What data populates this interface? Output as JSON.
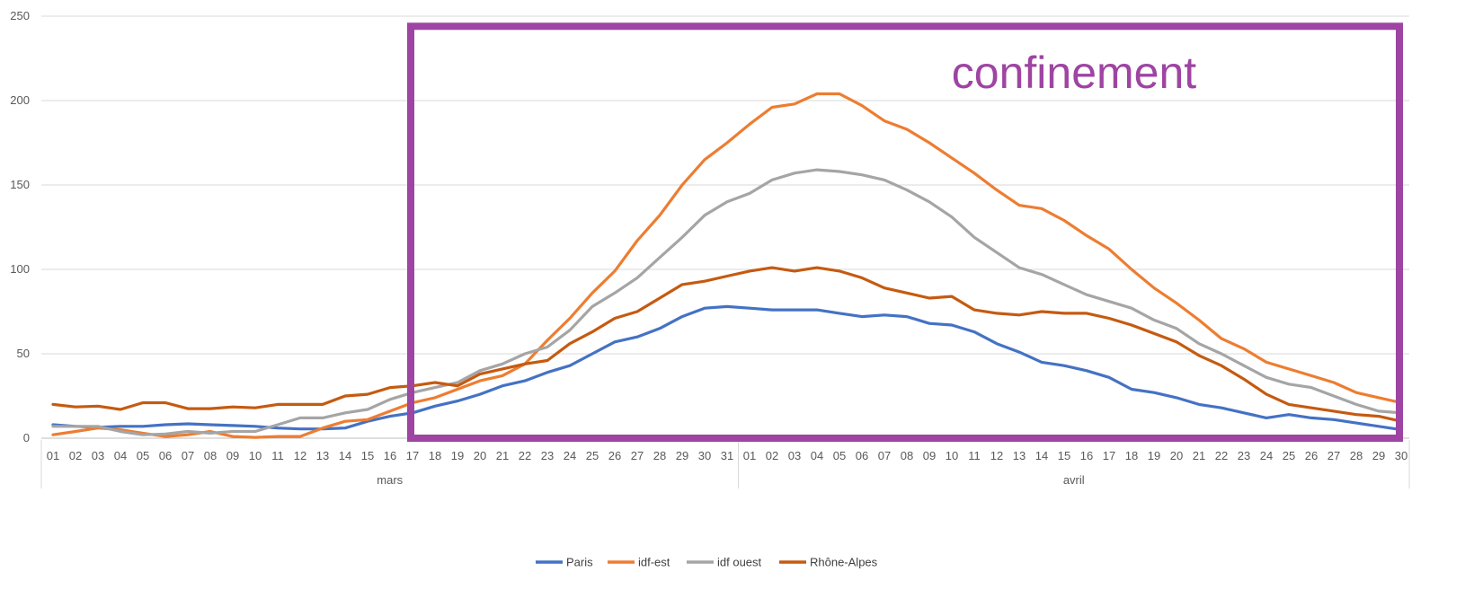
{
  "chart_data": {
    "type": "line",
    "title": "",
    "xlabel": "",
    "ylabel": "",
    "ylim": [
      0,
      250
    ],
    "yticks": [
      0,
      50,
      100,
      150,
      200,
      250
    ],
    "grid": "horizontal",
    "legend_position": "bottom",
    "months": [
      {
        "name": "mars",
        "start": 0,
        "end": 30
      },
      {
        "name": "avril",
        "start": 31,
        "end": 60
      }
    ],
    "x": [
      "01",
      "02",
      "03",
      "04",
      "05",
      "06",
      "07",
      "08",
      "09",
      "10",
      "11",
      "12",
      "13",
      "14",
      "15",
      "16",
      "17",
      "18",
      "19",
      "20",
      "21",
      "22",
      "23",
      "24",
      "25",
      "26",
      "27",
      "28",
      "29",
      "30",
      "31",
      "01",
      "02",
      "03",
      "04",
      "05",
      "06",
      "07",
      "08",
      "09",
      "10",
      "11",
      "12",
      "13",
      "14",
      "15",
      "16",
      "17",
      "18",
      "19",
      "20",
      "21",
      "22",
      "23",
      "24",
      "25",
      "26",
      "27",
      "28",
      "29",
      "30"
    ],
    "series": [
      {
        "name": "Paris",
        "color": "#4472C4",
        "values": [
          8,
          7,
          6.5,
          7,
          7,
          8,
          8.5,
          8,
          7.5,
          7,
          6,
          5.5,
          5.5,
          6,
          10,
          13,
          15,
          19,
          22,
          26,
          31,
          34,
          39,
          43,
          50,
          57,
          60,
          65,
          72,
          77,
          78,
          77,
          76,
          76,
          76,
          74,
          72,
          73,
          72,
          68,
          67,
          63,
          56,
          51,
          45,
          43,
          40,
          36,
          29,
          27,
          24,
          20,
          18,
          15,
          12,
          14,
          12,
          11,
          9,
          7,
          5
        ]
      },
      {
        "name": "idf-est",
        "color": "#ED7D31",
        "values": [
          2,
          4,
          6,
          5,
          3,
          1,
          2,
          4,
          1,
          0.5,
          1,
          1,
          6,
          10,
          11,
          16,
          21,
          24,
          29,
          34,
          37,
          44,
          58,
          71,
          86,
          99,
          117,
          132,
          150,
          165,
          175,
          186,
          196,
          198,
          204,
          204,
          197,
          188,
          183,
          175,
          166,
          157,
          147,
          138,
          136,
          129,
          120,
          112,
          100,
          89,
          80,
          70,
          59,
          53,
          45,
          41,
          37,
          33,
          27,
          24,
          21
        ]
      },
      {
        "name": "idf ouest",
        "color": "#A5A5A5",
        "values": [
          7,
          7,
          7,
          4,
          2,
          2.5,
          4,
          3,
          4,
          4,
          8,
          12,
          12,
          15,
          17,
          23,
          27,
          30,
          33,
          40,
          44,
          50,
          54,
          64,
          78,
          86,
          95,
          107,
          119,
          132,
          140,
          145,
          153,
          157,
          159,
          158,
          156,
          153,
          147,
          140,
          131,
          119,
          110,
          101,
          97,
          91,
          85,
          81,
          77,
          70,
          65,
          56,
          50,
          43,
          36,
          32,
          30,
          25,
          20,
          16,
          15
        ]
      },
      {
        "name": "Rhône-Alpes",
        "color": "#C55A11",
        "values": [
          20,
          18.5,
          19,
          17,
          21,
          21,
          17.5,
          17.5,
          18.5,
          18,
          20,
          20,
          20,
          25,
          26,
          30,
          31,
          33,
          31,
          38,
          41,
          44,
          46,
          56,
          63,
          71,
          75,
          83,
          91,
          93,
          96,
          99,
          101,
          99,
          101,
          99,
          95,
          89,
          86,
          83,
          84,
          76,
          74,
          73,
          75,
          74,
          74,
          71,
          67,
          62,
          57,
          49,
          43,
          35,
          26,
          20,
          18,
          16,
          14,
          13,
          10
        ]
      }
    ],
    "annotation": {
      "text": "confinement",
      "from_index": 16,
      "to_index": 60,
      "y_top": 244,
      "y_bottom": 0,
      "color": "#9E44A3"
    }
  }
}
